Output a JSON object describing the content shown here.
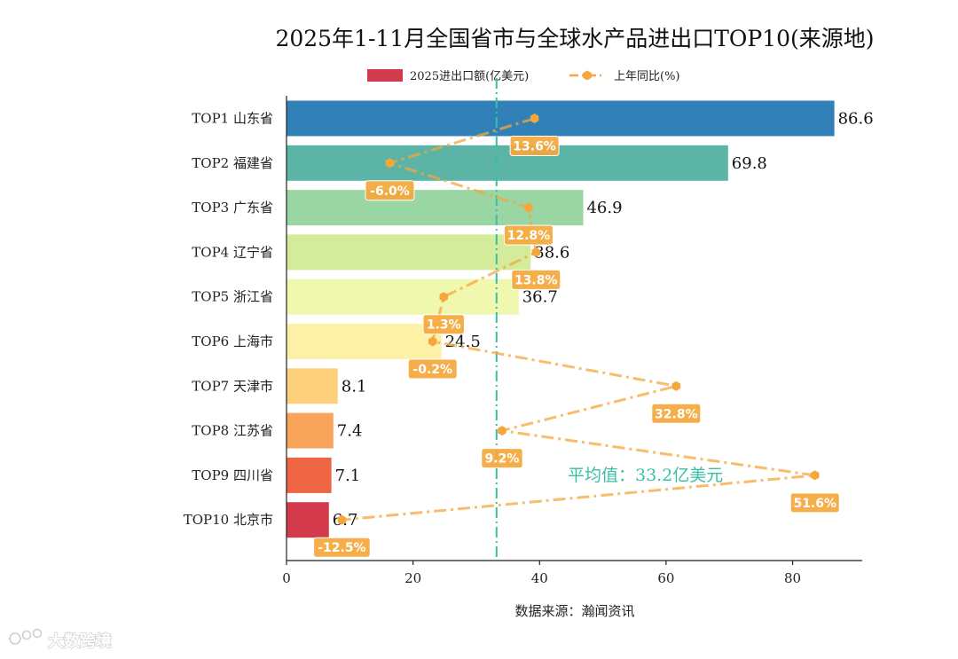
{
  "chart_data": {
    "type": "bar",
    "orientation": "horizontal",
    "title": "2025年1-11月全国省市与全球水产品进出口TOP10(来源地)",
    "categories": [
      "TOP1 山东省",
      "TOP2 福建省",
      "TOP3 广东省",
      "TOP4 辽宁省",
      "TOP5 浙江省",
      "TOP6 上海市",
      "TOP7 天津市",
      "TOP8 江苏省",
      "TOP9 四川省",
      "TOP10 北京市"
    ],
    "series": [
      {
        "name": "2025进出口额(亿美元)",
        "values": [
          86.6,
          69.8,
          46.9,
          38.6,
          36.7,
          24.5,
          8.1,
          7.4,
          7.1,
          6.7
        ],
        "value_labels": [
          "86.6",
          "69.8",
          "46.9",
          "38.6",
          "36.7",
          "24.5",
          "8.1",
          "7.4",
          "7.1",
          "6.7"
        ],
        "colors": [
          "#3180b8",
          "#5bb4a6",
          "#9ad6a3",
          "#d3eb9b",
          "#f0f7ae",
          "#fdf1a8",
          "#fdd07e",
          "#f9a45b",
          "#ef6645",
          "#d33b4c"
        ]
      },
      {
        "name": "上年同比(%)",
        "values": [
          13.6,
          -6.0,
          12.8,
          13.8,
          1.3,
          -0.2,
          32.8,
          9.2,
          51.6,
          -12.5
        ],
        "value_labels": [
          "13.6%",
          "-6.0%",
          "12.8%",
          "13.8%",
          "1.3%",
          "-0.2%",
          "32.8%",
          "9.2%",
          "51.6%",
          "-12.5%"
        ],
        "color": "#f5a73b"
      }
    ],
    "average": {
      "value": 33.2,
      "label": "平均值：33.2亿美元",
      "color": "#39bfa5"
    },
    "xlabel": "数据来源：瀚闻资讯",
    "xlim": [
      0,
      91
    ],
    "xticks": [
      0,
      20,
      40,
      60,
      80
    ],
    "xtick_labels": [
      "0",
      "20",
      "40",
      "60",
      "80"
    ],
    "secondary_xlim": [
      -20,
      58
    ],
    "legend": "top-center"
  },
  "watermark": {
    "text": "大数跨境"
  }
}
